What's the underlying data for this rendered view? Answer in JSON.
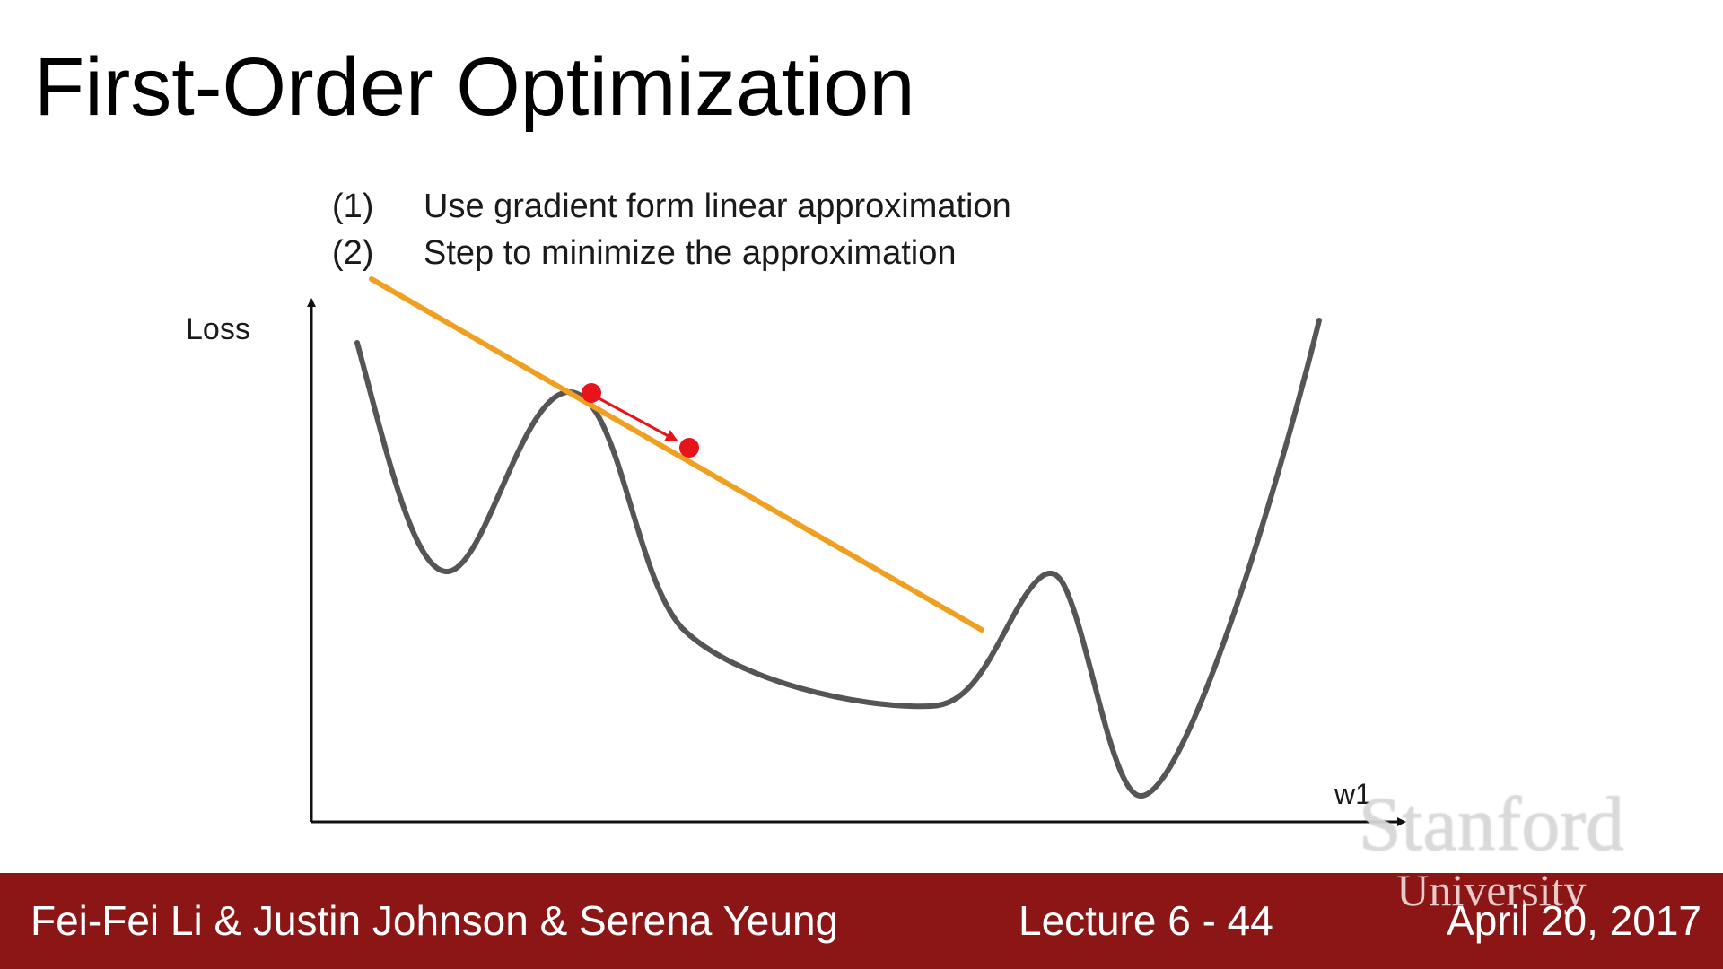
{
  "slide": {
    "title": "First-Order Optimization",
    "steps": [
      {
        "num": "(1)",
        "text": "Use gradient form linear approximation"
      },
      {
        "num": "(2)",
        "text": "Step to minimize the approximation"
      }
    ]
  },
  "diagram": {
    "y_axis_label": "Loss",
    "x_axis_label": "w1",
    "colors": {
      "curve": "#555555",
      "tangent": "#f0a020",
      "point": "#e8141b",
      "axis": "#111111"
    }
  },
  "watermark": {
    "main": "Stanford",
    "sub": "University"
  },
  "footer": {
    "authors": "Fei-Fei Li & Justin Johnson & Serena Yeung",
    "lecture": "Lecture 6 - 44",
    "date": "April 20, 2017"
  }
}
